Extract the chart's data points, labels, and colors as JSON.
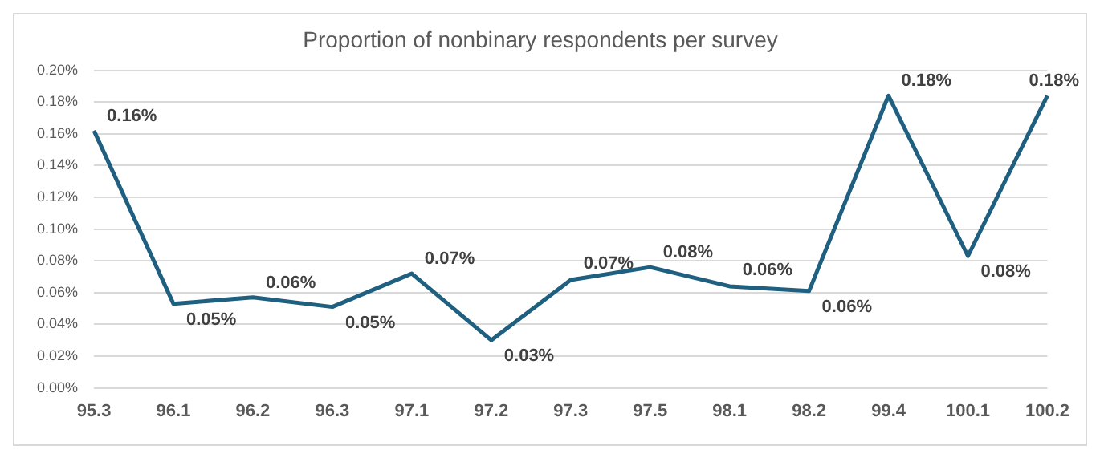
{
  "chart_data": {
    "type": "line",
    "title": "Proportion of nonbinary respondents per survey",
    "categories": [
      "95.3",
      "96.1",
      "96.2",
      "96.3",
      "97.1",
      "97.2",
      "97.3",
      "97.5",
      "98.1",
      "98.2",
      "99.4",
      "100.1",
      "100.2"
    ],
    "series": [
      {
        "color": "#1f5f7f",
        "values": [
          0.162,
          0.053,
          0.057,
          0.051,
          0.072,
          0.03,
          0.068,
          0.076,
          0.064,
          0.061,
          0.184,
          0.083,
          0.184
        ],
        "value_labels": [
          "0.16%",
          "0.05%",
          "0.06%",
          "0.05%",
          "0.07%",
          "0.03%",
          "0.07%",
          "0.08%",
          "0.06%",
          "0.06%",
          "0.18%",
          "0.08%",
          "0.18%"
        ]
      }
    ],
    "ylim": [
      0,
      0.2
    ],
    "yticks": [
      {
        "value": 0,
        "label": "0.00%"
      },
      {
        "value": 0.02,
        "label": "0.02%"
      },
      {
        "value": 0.04,
        "label": "0.04%"
      },
      {
        "value": 0.06,
        "label": "0.06%"
      },
      {
        "value": 0.08,
        "label": "0.08%"
      },
      {
        "value": 0.1,
        "label": "0.10%"
      },
      {
        "value": 0.12,
        "label": "0.12%"
      },
      {
        "value": 0.14,
        "label": "0.14%"
      },
      {
        "value": 0.16,
        "label": "0.16%"
      },
      {
        "value": 0.18,
        "label": "0.18%"
      },
      {
        "value": 0.2,
        "label": "0.20%"
      }
    ],
    "grid": "y",
    "legend": false,
    "marker": "none",
    "line_style": "solid"
  }
}
